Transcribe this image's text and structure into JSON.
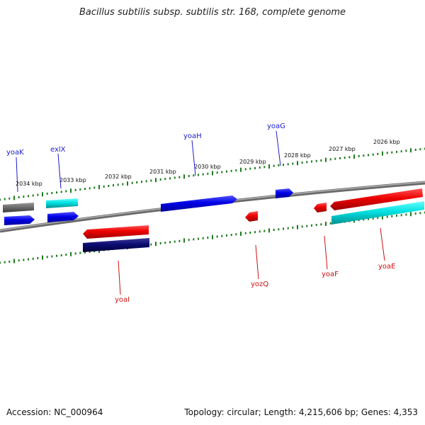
{
  "title": "Bacillus subtilis subsp. subtilis str. 168, complete genome",
  "footer": {
    "accession": "Accession: NC_000964",
    "topology": "Topology: circular; Length: 4,215,606 bp; Genes: 4,353"
  },
  "scale_labels": [
    "2034 kbp",
    "2033 kbp",
    "2032 kbp",
    "2031 kbp",
    "2030 kbp",
    "2029 kbp",
    "2028 kbp",
    "2027 kbp",
    "2026 kbp"
  ],
  "gene_labels": {
    "forward": [
      "yoaK",
      "exlX",
      "yoaH",
      "yoaG"
    ],
    "reverse": [
      "yoaI",
      "yozQ",
      "yoaF",
      "yoaE"
    ]
  },
  "colors": {
    "forward_label": "#1a1acc",
    "reverse_label": "#cc1111",
    "backbone": "#808080",
    "ticks": "#1f7a1f",
    "forward_gene": "#0000e0",
    "reverse_gene": "#e00000",
    "cyan_gene": "#00d0d0",
    "gray_gene": "#666666",
    "navy_gene": "#000066"
  }
}
